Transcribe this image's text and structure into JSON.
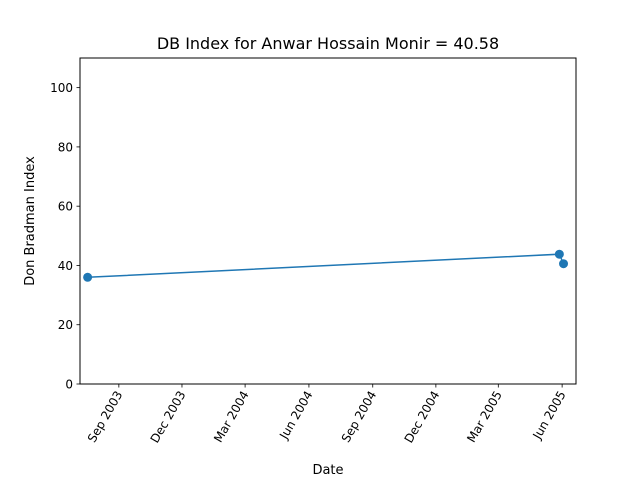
{
  "chart_data": {
    "type": "line",
    "title": "DB Index for Anwar Hossain Monir = 40.58",
    "xlabel": "Date",
    "ylabel": "Don Bradman Index",
    "xlim": [
      "2003-07-07",
      "2005-06-21"
    ],
    "ylim": [
      0,
      110
    ],
    "x_ticks": [
      {
        "date": "2003-09-01",
        "label": "Sep 2003"
      },
      {
        "date": "2003-12-01",
        "label": "Dec 2003"
      },
      {
        "date": "2004-03-01",
        "label": "Mar 2004"
      },
      {
        "date": "2004-06-01",
        "label": "Jun 2004"
      },
      {
        "date": "2004-09-01",
        "label": "Sep 2004"
      },
      {
        "date": "2004-12-01",
        "label": "Dec 2004"
      },
      {
        "date": "2005-03-01",
        "label": "Mar 2005"
      },
      {
        "date": "2005-06-01",
        "label": "Jun 2005"
      }
    ],
    "y_ticks": [
      {
        "value": 0,
        "label": "0"
      },
      {
        "value": 20,
        "label": "20"
      },
      {
        "value": 40,
        "label": "40"
      },
      {
        "value": 60,
        "label": "60"
      },
      {
        "value": 80,
        "label": "80"
      },
      {
        "value": 100,
        "label": "100"
      }
    ],
    "grid": false,
    "series": [
      {
        "color": "#1f77b4",
        "points": [
          {
            "x": "2003-07-18",
            "y": 36.0
          },
          {
            "x": "2005-05-28",
            "y": 43.8
          },
          {
            "x": "2005-06-03",
            "y": 40.58
          }
        ]
      }
    ]
  }
}
